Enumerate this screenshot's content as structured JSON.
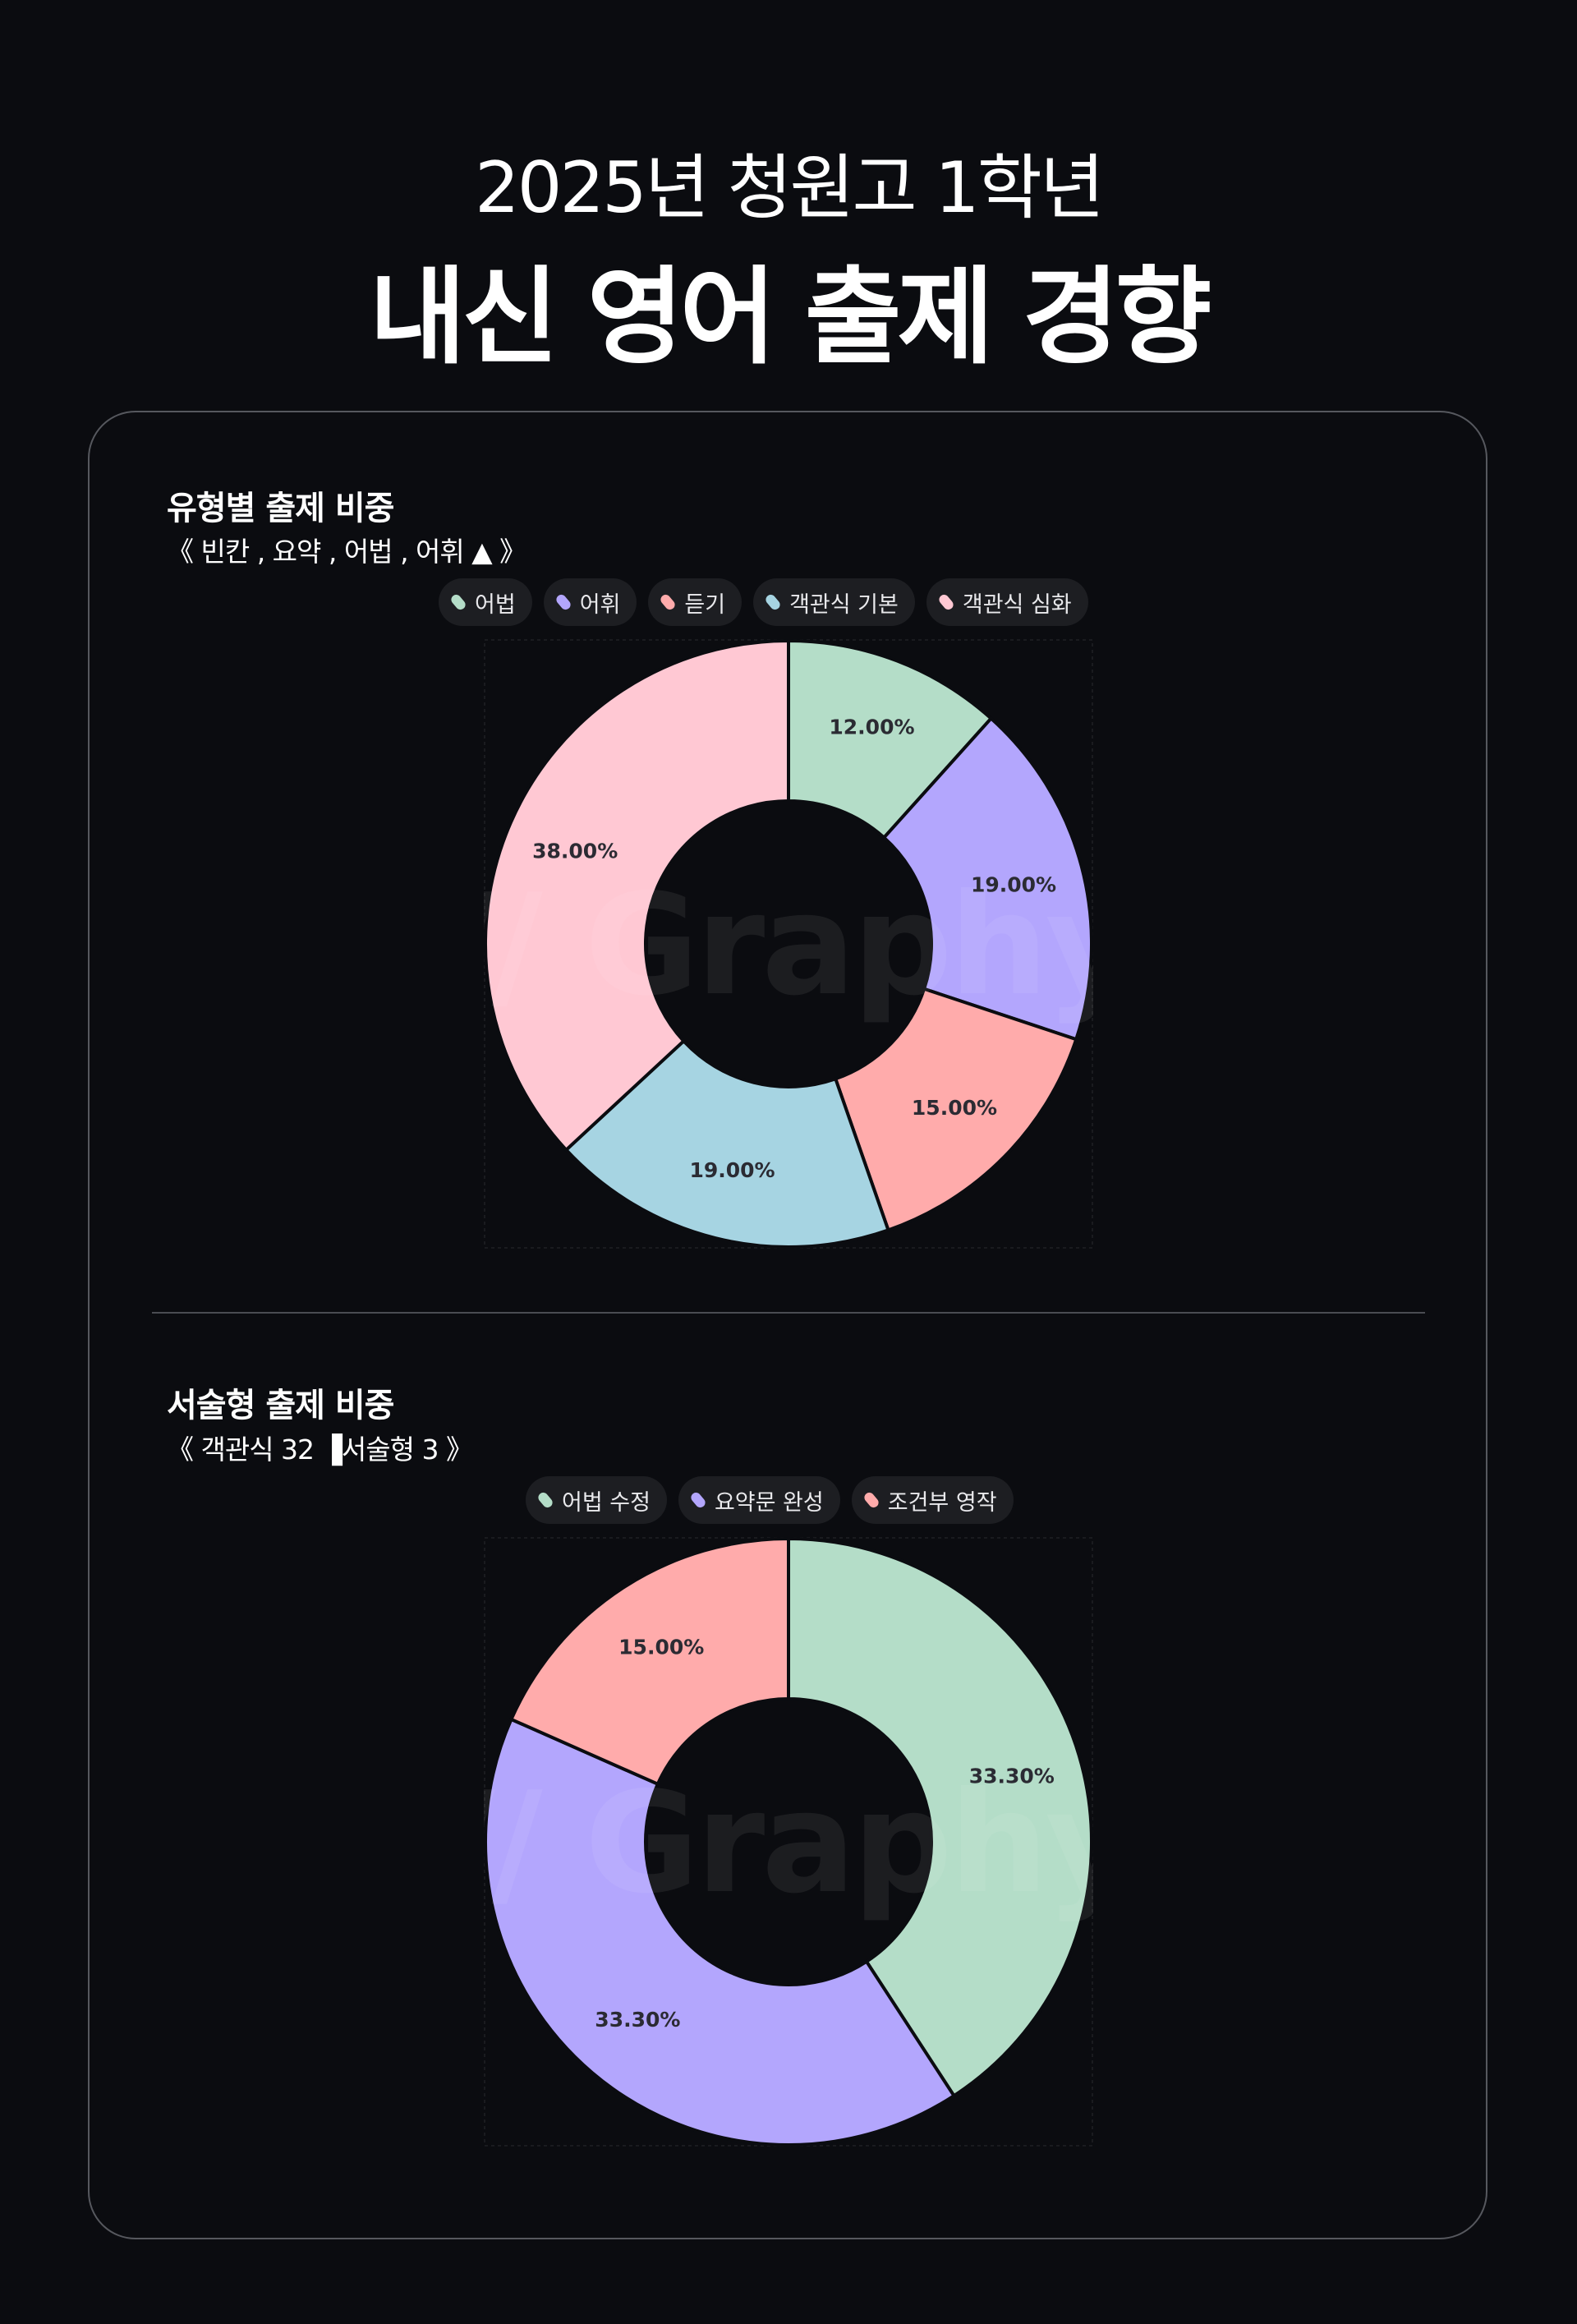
{
  "header": {
    "subtitle": "2025년 청원고 1학년",
    "title": "내신 영어 출제 경향"
  },
  "sections": [
    {
      "title": "유형별 출제 비중",
      "note": "《 빈칸 , 요약 , 어법 , 어휘 ▲ 》"
    },
    {
      "title": "서술형 출제 비중",
      "note": "《 객관식 32 ▐서술형 3 》"
    }
  ],
  "watermark_text": "Graphy",
  "chart_data": [
    {
      "type": "pie",
      "donut": true,
      "title": "유형별 출제 비중",
      "categories": [
        "어법",
        "어휘",
        "듣기",
        "객관식 기본",
        "객관식 심화"
      ],
      "values": [
        12,
        19,
        15,
        19,
        38
      ],
      "labels": [
        "12.00%",
        "19.00%",
        "15.00%",
        "19.00%",
        "38.00%"
      ],
      "colors": [
        "#b4ddc8",
        "#b3a6fd",
        "#ffabab",
        "#a6d4e2",
        "#ffc8d3"
      ],
      "legend": "top-center"
    },
    {
      "type": "pie",
      "donut": true,
      "title": "서술형 출제 비중",
      "categories": [
        "어법 수정",
        "요약문 완성",
        "조건부 영작"
      ],
      "values": [
        33.3,
        33.3,
        15
      ],
      "labels": [
        "33.30%",
        "33.30%",
        "15.00%"
      ],
      "colors": [
        "#b4ddc8",
        "#b3a6fd",
        "#ffabab"
      ],
      "legend": "top-center"
    }
  ]
}
